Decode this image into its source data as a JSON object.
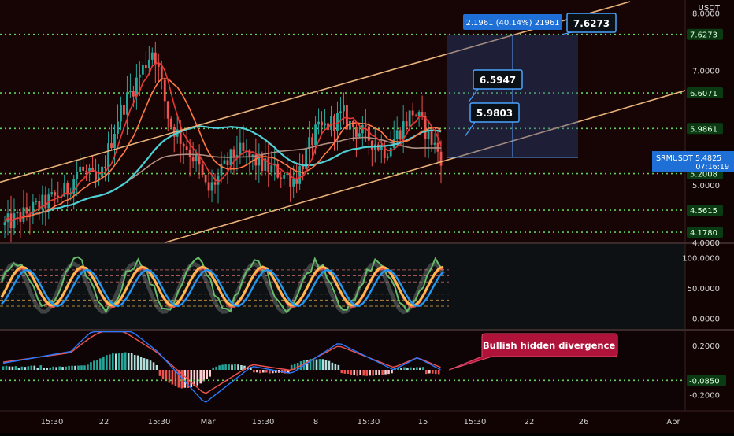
{
  "chart_data": [
    {
      "type": "candlestick",
      "symbol": "SRMUSDT",
      "currency": "USDT",
      "price_label": "SRMUSDT",
      "last_price": "5.4825",
      "countdown": "07:16:19",
      "ylim": [
        4.0,
        8.2
      ],
      "y_ticks": [
        4.0,
        5.0,
        6.0,
        7.0,
        8.0
      ],
      "y_tick_labels": [
        "4.0000",
        "5.0000",
        "6.0000",
        "7.0000",
        "8.0000"
      ],
      "x_tick_labels": [
        "15:30",
        "22",
        "15:30",
        "Mar",
        "15:30",
        "8",
        "15:30",
        "15",
        "15:30",
        "22",
        "26",
        "Apr"
      ],
      "levels": [
        {
          "value": 7.6273,
          "label": "7.6273"
        },
        {
          "value": 6.6071,
          "label": "6.6071"
        },
        {
          "value": 5.9861,
          "label": "5.9861"
        },
        {
          "value": 5.2008,
          "label": "5.2008"
        },
        {
          "value": 4.5615,
          "label": "4.5615"
        },
        {
          "value": 4.178,
          "label": "4.1780"
        }
      ],
      "measure_label": "2.1961 (40.14%) 21961",
      "targets": [
        "7.6273",
        "6.5947",
        "5.9803"
      ],
      "colors": {
        "up": "#26a69a",
        "down": "#ef5350",
        "level": "#5fd35f",
        "channel": "#e8b27a",
        "accent": "#2196f3"
      }
    },
    {
      "type": "line",
      "indicator": "oscillator",
      "ylim": [
        -15,
        120
      ],
      "y_ticks": [
        100,
        50,
        0
      ],
      "y_tick_labels": [
        "100.0000",
        "50.0000",
        "0.0000"
      ]
    },
    {
      "type": "bar",
      "indicator": "macd",
      "ylim": [
        -0.32,
        0.32
      ],
      "y_ticks": [
        0.2,
        -0.2
      ],
      "y_tick_labels": [
        "0.2000",
        "-0.2000"
      ],
      "current_value": "-0.0850",
      "annotation": "Bullish hidden divergence"
    }
  ]
}
